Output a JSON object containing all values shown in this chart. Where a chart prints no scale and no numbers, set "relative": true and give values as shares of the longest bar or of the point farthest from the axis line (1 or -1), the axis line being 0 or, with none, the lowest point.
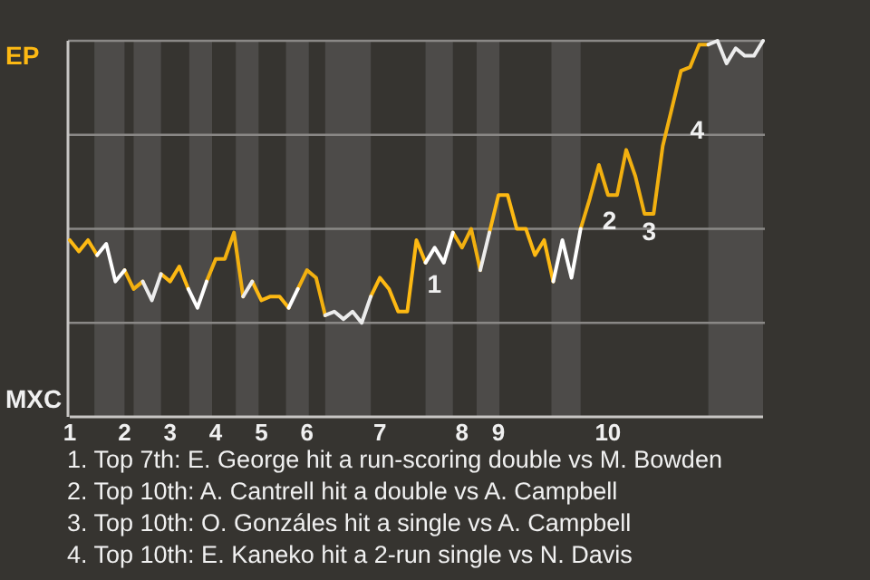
{
  "chart_data": {
    "type": "line",
    "relative": true,
    "categories": [
      "1",
      null,
      null,
      null,
      null,
      null,
      "2",
      null,
      null,
      null,
      null,
      "3",
      null,
      null,
      null,
      null,
      "4",
      null,
      null,
      null,
      null,
      "5",
      null,
      null,
      null,
      null,
      "6",
      null,
      null,
      null,
      null,
      null,
      null,
      null,
      "7",
      null,
      null,
      null,
      null,
      null,
      null,
      null,
      null,
      "8",
      null,
      null,
      null,
      "9",
      null,
      null,
      null,
      null,
      null,
      null,
      null,
      null,
      null,
      null,
      null,
      "10",
      null,
      null,
      null,
      null,
      null,
      null,
      null,
      null,
      null,
      null,
      null,
      null,
      null,
      null,
      null,
      null,
      null
    ],
    "grid": true,
    "line_style": "solid",
    "marker": "none",
    "series": [
      {
        "color": "#fdb913",
        "values": [
          0.47,
          0.44,
          0.47,
          0.43,
          null,
          null,
          null,
          null,
          null,
          null,
          0.38,
          0.36,
          0.4,
          0.34,
          null,
          null,
          null,
          null,
          null,
          null,
          0.36,
          0.31,
          0.32,
          0.32,
          0.29,
          null,
          null,
          null,
          null,
          null,
          null,
          null,
          null,
          0.32,
          0.37,
          0.34,
          0.28,
          0.28,
          0.47,
          0.41,
          null,
          null,
          null,
          null,
          null,
          null,
          0.49,
          0.59,
          0.59,
          0.5,
          0.5,
          0.43,
          0.47,
          0.36,
          null,
          null,
          null,
          null,
          null,
          null,
          null,
          null,
          null,
          null,
          null,
          null,
          null,
          null,
          null,
          null,
          null,
          null,
          null,
          null,
          null,
          null,
          null
        ]
      },
      {
        "color": "#f2b010",
        "values": [
          null,
          null,
          null,
          null,
          null,
          null,
          0.39,
          0.34,
          0.36,
          null,
          null,
          null,
          null,
          null,
          null,
          0.36,
          0.42,
          0.42,
          0.49,
          0.32,
          null,
          null,
          null,
          null,
          null,
          0.34,
          0.39,
          0.37,
          0.27,
          null,
          null,
          null,
          null,
          null,
          null,
          null,
          null,
          null,
          null,
          null,
          null,
          null,
          0.49,
          0.45,
          0.5,
          0.39,
          null,
          null,
          null,
          null,
          null,
          null,
          null,
          null,
          null,
          null,
          0.5,
          0.58,
          0.67,
          0.59,
          0.59,
          0.71,
          0.64,
          0.54,
          0.54,
          0.72,
          0.82,
          0.92,
          0.93,
          0.99,
          0.99,
          null,
          null,
          null,
          null,
          null,
          null
        ]
      },
      {
        "color": "#ffffff",
        "values": [
          null,
          null,
          null,
          0.43,
          0.46,
          0.36,
          0.39,
          null,
          null,
          null,
          null,
          null,
          null,
          0.34,
          0.29,
          0.36,
          null,
          null,
          null,
          null,
          null,
          null,
          null,
          null,
          0.29,
          0.34,
          null,
          null,
          null,
          null,
          null,
          null,
          null,
          null,
          null,
          null,
          null,
          null,
          null,
          0.41,
          0.45,
          0.41,
          0.49,
          null,
          null,
          null,
          null,
          null,
          null,
          null,
          null,
          null,
          null,
          0.36,
          0.47,
          0.37,
          0.5,
          null,
          null,
          null,
          null,
          null,
          null,
          null,
          null,
          null,
          null,
          null,
          null,
          null,
          null,
          null,
          null,
          null,
          null,
          null,
          null
        ]
      },
      {
        "color": "#ececec",
        "values": [
          null,
          null,
          null,
          null,
          null,
          null,
          null,
          null,
          0.36,
          0.31,
          0.38,
          null,
          null,
          null,
          null,
          null,
          null,
          null,
          null,
          0.32,
          0.36,
          null,
          null,
          null,
          null,
          null,
          null,
          null,
          0.27,
          0.28,
          0.26,
          0.28,
          0.25,
          0.32,
          null,
          null,
          null,
          null,
          null,
          null,
          null,
          null,
          null,
          null,
          null,
          0.39,
          0.49,
          null,
          null,
          null,
          null,
          null,
          null,
          null,
          null,
          null,
          null,
          null,
          null,
          null,
          null,
          null,
          null,
          null,
          null,
          null,
          null,
          null,
          null,
          null,
          0.99,
          1.0,
          0.94,
          0.98,
          0.96,
          0.96,
          1.0
        ]
      }
    ],
    "annotations": [
      "EP",
      "MXC",
      "1",
      "2",
      "3",
      "4",
      "1. Top 7th: E. George hit a run-scoring double vs M. Bowden",
      "2. Top 10th: A. Cantrell hit a double vs A. Campbell",
      "3. Top 10th: O. Gonzáles hit a single vs A. Campbell",
      "4. Top 10th: E. Kaneko hit a 2-run single vs N. Davis"
    ]
  }
}
